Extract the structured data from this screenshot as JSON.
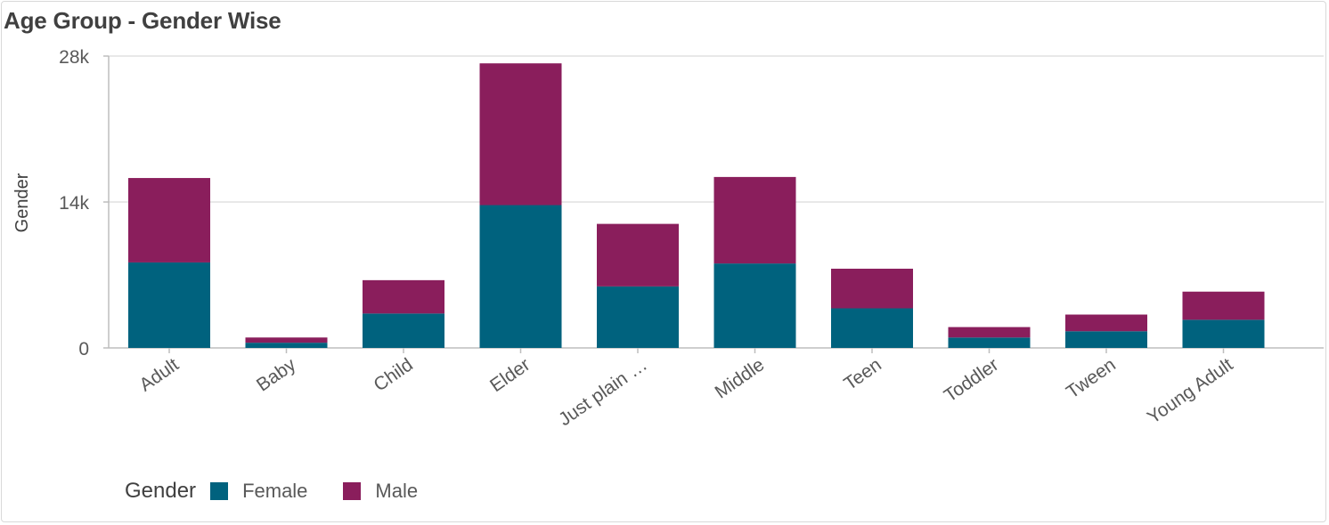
{
  "title": "Age Group - Gender Wise",
  "legend": {
    "title": "Gender",
    "items": [
      {
        "label": "Female",
        "color": "#00627e"
      },
      {
        "label": "Male",
        "color": "#8a1e5c"
      }
    ]
  },
  "chart_data": {
    "type": "bar",
    "stacked": true,
    "title": "Age Group - Gender Wise",
    "xlabel": "",
    "ylabel": "Gender",
    "ylim": [
      0,
      28000
    ],
    "yticks": [
      0,
      14000,
      28000
    ],
    "ytick_labels": [
      "0",
      "14k",
      "28k"
    ],
    "categories": [
      "Adult",
      "Baby",
      "Child",
      "Elder",
      "Just plain …",
      "Middle",
      "Teen",
      "Toddler",
      "Tween",
      "Young Adult"
    ],
    "series": [
      {
        "name": "Female",
        "color": "#00627e",
        "values": [
          8200,
          500,
          3300,
          13700,
          5900,
          8100,
          3800,
          1000,
          1600,
          2700
        ]
      },
      {
        "name": "Male",
        "color": "#8a1e5c",
        "values": [
          8100,
          500,
          3200,
          13600,
          6000,
          8300,
          3800,
          1000,
          1600,
          2700
        ]
      }
    ],
    "grid": true,
    "legend_position": "bottom-left"
  }
}
